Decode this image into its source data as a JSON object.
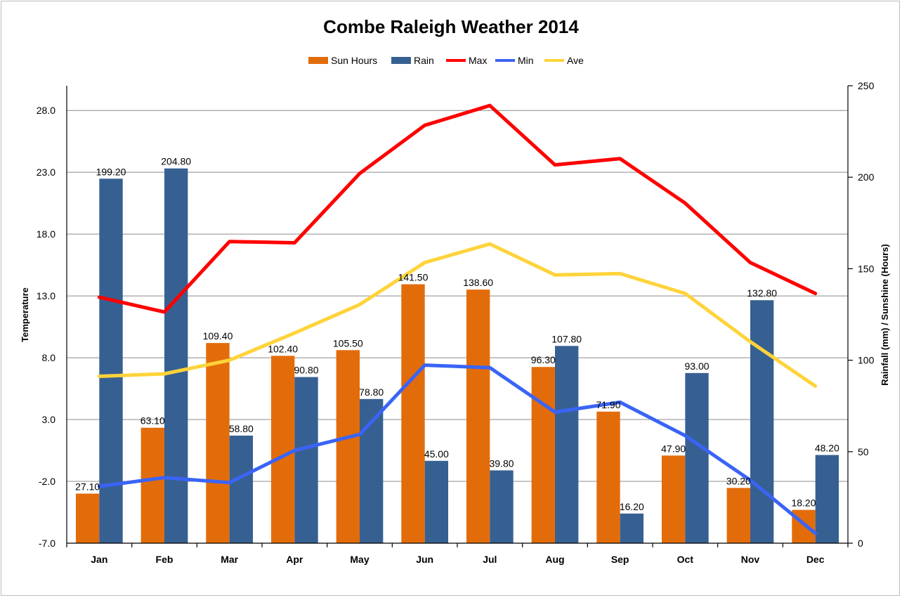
{
  "chart_data": {
    "type": "bar",
    "title": "Combe Raleigh Weather 2014",
    "categories": [
      "Jan",
      "Feb",
      "Mar",
      "Apr",
      "May",
      "Jun",
      "Jul",
      "Aug",
      "Sep",
      "Oct",
      "Nov",
      "Dec"
    ],
    "ylabel_left": "Temperature",
    "ylabel_right": "Rainfall (mm) / Sunshine (Hours)",
    "ylim_left": [
      -7.0,
      30.0
    ],
    "yticks_left": [
      "28.0",
      "23.0",
      "18.0",
      "13.0",
      "8.0",
      "3.0",
      "-2.0",
      "-7.0"
    ],
    "ytick_values_left": [
      28,
      23,
      18,
      13,
      8,
      3,
      -2,
      -7
    ],
    "ylim_right": [
      0,
      250
    ],
    "yticks_right": [
      "250",
      "200",
      "150",
      "100",
      "50",
      "0"
    ],
    "ytick_values_right": [
      250,
      200,
      150,
      100,
      50,
      0
    ],
    "grid": true,
    "legend_position": "top-center",
    "bar_series": [
      {
        "name": "Sun Hours",
        "color": "#e36c0a",
        "axis": "right",
        "values": [
          27.1,
          63.1,
          109.4,
          102.4,
          105.5,
          141.5,
          138.6,
          96.3,
          71.9,
          47.9,
          30.2,
          18.2
        ],
        "labels": [
          "27.10",
          "63.10",
          "109.40",
          "102.40",
          "105.50",
          "141.50",
          "138.60",
          "96.30",
          "71.90",
          "47.90",
          "30.20",
          "18.20"
        ]
      },
      {
        "name": "Rain",
        "color": "#376092",
        "axis": "right",
        "values": [
          199.2,
          204.8,
          58.8,
          90.8,
          78.8,
          45.0,
          39.8,
          107.8,
          16.2,
          93.0,
          132.8,
          48.2
        ],
        "labels": [
          "199.20",
          "204.80",
          "58.80",
          "90.80",
          "78.80",
          "45.00",
          "39.80",
          "107.80",
          "16.20",
          "93.00",
          "132.80",
          "48.20"
        ]
      }
    ],
    "line_series": [
      {
        "name": "Max",
        "color": "#ff0000",
        "axis": "left",
        "values": [
          12.9,
          11.7,
          17.4,
          17.3,
          22.9,
          26.8,
          28.4,
          23.6,
          24.1,
          20.5,
          15.7,
          13.2
        ]
      },
      {
        "name": "Min",
        "color": "#3a64f5",
        "axis": "left",
        "values": [
          -2.4,
          -1.7,
          -2.1,
          0.5,
          1.8,
          7.4,
          7.2,
          3.6,
          4.4,
          1.7,
          -1.9,
          -6.2
        ]
      },
      {
        "name": "Ave",
        "color": "#ffd33a",
        "axis": "left",
        "values": [
          6.5,
          6.7,
          7.8,
          10.0,
          12.3,
          15.7,
          17.2,
          14.7,
          14.8,
          13.2,
          9.3,
          5.7
        ]
      }
    ]
  }
}
